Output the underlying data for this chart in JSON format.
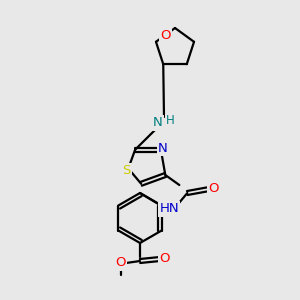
{
  "bg_color": "#e8e8e8",
  "bond_color": "#000000",
  "bond_width": 1.6,
  "atom_colors": {
    "C": "#000000",
    "N": "#0000cc",
    "O": "#ff0000",
    "S": "#cccc00",
    "H": "#000000"
  },
  "nh_color": "#008080",
  "font_size": 9.5,
  "font_size_small": 8.5
}
